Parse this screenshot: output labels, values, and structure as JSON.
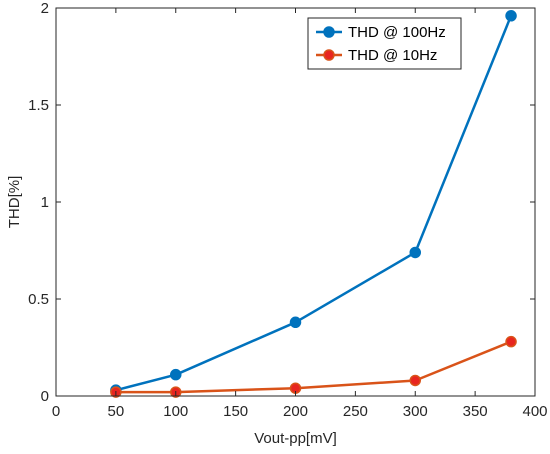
{
  "chart_data": {
    "type": "line",
    "xlabel": "Vout-pp[mV]",
    "ylabel": "THD[%]",
    "xlim": [
      0,
      400
    ],
    "ylim": [
      0,
      2
    ],
    "xticks": [
      0,
      50,
      100,
      150,
      200,
      250,
      300,
      350,
      400
    ],
    "yticks": [
      0,
      0.5,
      1,
      1.5,
      2
    ],
    "xtick_labels": [
      "0",
      "50",
      "100",
      "150",
      "200",
      "250",
      "300",
      "350",
      "400"
    ],
    "ytick_labels": [
      "0",
      "0.5",
      "1",
      "1.5",
      "2"
    ],
    "grid": false,
    "legend_position": "top-right",
    "x": [
      50,
      100,
      200,
      300,
      380
    ],
    "series": [
      {
        "name": "THD @ 100Hz",
        "color": "#0072bd",
        "marker_fill": "#0072bd",
        "values": [
          0.03,
          0.11,
          0.38,
          0.74,
          1.96
        ]
      },
      {
        "name": "THD @ 10Hz",
        "color": "#d95319",
        "marker_fill": "#e8251f",
        "values": [
          0.02,
          0.02,
          0.04,
          0.08,
          0.28
        ]
      }
    ]
  }
}
